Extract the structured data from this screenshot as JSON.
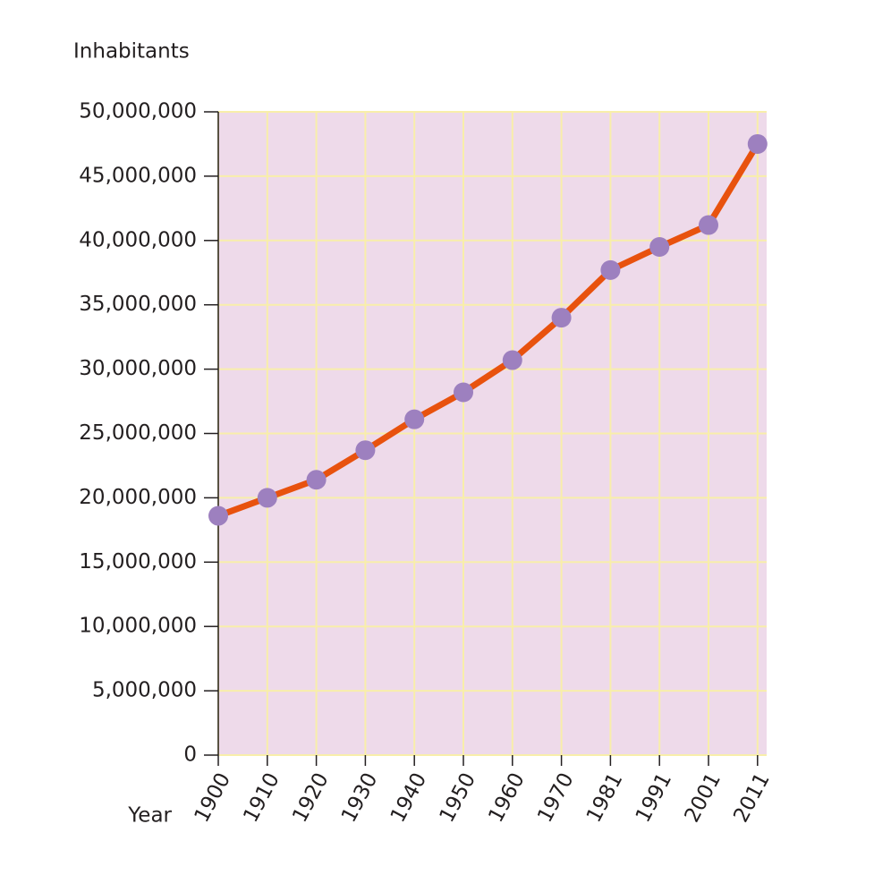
{
  "chart_data": {
    "type": "line",
    "y_label": "Inhabitants",
    "x_label": "Year",
    "categories": [
      "1900",
      "1910",
      "1920",
      "1930",
      "1940",
      "1950",
      "1960",
      "1970",
      "1981",
      "1991",
      "2001",
      "2011"
    ],
    "series": [
      {
        "name": "Inhabitants",
        "line_color": "#e8520e",
        "marker_color": "#9d80bf",
        "values": [
          18600000,
          20000000,
          21400000,
          23700000,
          26100000,
          28200000,
          30700000,
          34000000,
          37700000,
          39500000,
          41200000,
          47500000
        ]
      }
    ],
    "ylim": [
      0,
      50000000
    ],
    "yticks": [
      0,
      {
        "value": 5000000,
        "label": "5,000,000"
      },
      {
        "value": 10000000,
        "label": "10,000,000"
      },
      {
        "value": 15000000,
        "label": "15,000,000"
      },
      {
        "value": 20000000,
        "label": "20,000,000"
      },
      {
        "value": 25000000,
        "label": "25,000,000"
      },
      {
        "value": 30000000,
        "label": "30,000,000"
      },
      {
        "value": 35000000,
        "label": "35,000,000"
      },
      {
        "value": 40000000,
        "label": "40,000,000"
      },
      {
        "value": 45000000,
        "label": "45,000,000"
      },
      {
        "value": 50000000,
        "label": "50,000,000"
      }
    ],
    "grid": true,
    "plot_background": "#eedaea",
    "grid_color": "#f8eeaa"
  }
}
